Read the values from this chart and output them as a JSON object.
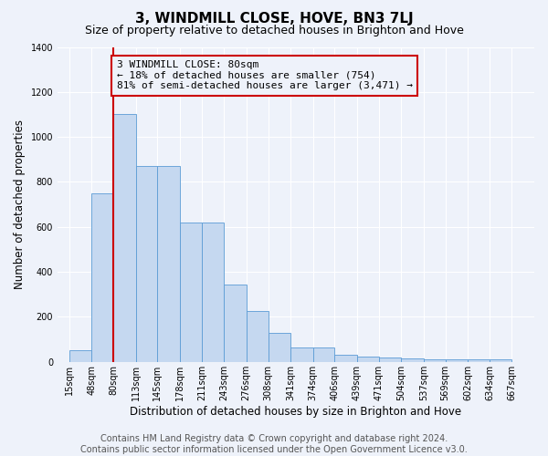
{
  "title": "3, WINDMILL CLOSE, HOVE, BN3 7LJ",
  "subtitle": "Size of property relative to detached houses in Brighton and Hove",
  "xlabel": "Distribution of detached houses by size in Brighton and Hove",
  "ylabel": "Number of detached properties",
  "footer_line1": "Contains HM Land Registry data © Crown copyright and database right 2024.",
  "footer_line2": "Contains public sector information licensed under the Open Government Licence v3.0.",
  "annotation_line1": "3 WINDMILL CLOSE: 80sqm",
  "annotation_line2": "← 18% of detached houses are smaller (754)",
  "annotation_line3": "81% of semi-detached houses are larger (3,471) →",
  "bar_left_edges": [
    15,
    48,
    80,
    113,
    145,
    178,
    211,
    243,
    276,
    308,
    341,
    374,
    406,
    439,
    471,
    504,
    537,
    569,
    602,
    634
  ],
  "bar_heights": [
    50,
    750,
    1100,
    870,
    870,
    620,
    620,
    345,
    225,
    130,
    65,
    65,
    30,
    25,
    20,
    15,
    10,
    10,
    10,
    10
  ],
  "bar_color": "#c5d8f0",
  "bar_edge_color": "#5b9bd5",
  "marker_x": 80,
  "marker_color": "#cc0000",
  "xlim_left": -2,
  "xlim_right": 700,
  "ylim_min": 0,
  "ylim_max": 1400,
  "yticks": [
    0,
    200,
    400,
    600,
    800,
    1000,
    1200,
    1400
  ],
  "x_tick_labels": [
    "15sqm",
    "48sqm",
    "80sqm",
    "113sqm",
    "145sqm",
    "178sqm",
    "211sqm",
    "243sqm",
    "276sqm",
    "308sqm",
    "341sqm",
    "374sqm",
    "406sqm",
    "439sqm",
    "471sqm",
    "504sqm",
    "537sqm",
    "569sqm",
    "602sqm",
    "634sqm",
    "667sqm"
  ],
  "x_tick_positions": [
    15,
    48,
    80,
    113,
    145,
    178,
    211,
    243,
    276,
    308,
    341,
    374,
    406,
    439,
    471,
    504,
    537,
    569,
    602,
    634,
    667
  ],
  "background_color": "#eef2fa",
  "grid_color": "#ffffff",
  "title_fontsize": 11,
  "subtitle_fontsize": 9,
  "axis_label_fontsize": 8.5,
  "tick_fontsize": 7,
  "annotation_fontsize": 8,
  "footer_fontsize": 7
}
